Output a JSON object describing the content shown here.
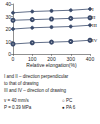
{
  "chart_data": {
    "type": "line",
    "x_label": "Relative elongation(%)",
    "x": [
      0,
      100,
      200,
      300,
      400
    ],
    "xlim": [
      0,
      400
    ],
    "xticks": [
      0,
      100,
      200,
      300,
      400
    ],
    "ylim": [
      0,
      40
    ],
    "yticks": [
      0,
      10,
      20,
      30,
      40
    ],
    "grid": false,
    "color": "#3a4a6b",
    "series": [
      {
        "name": "I",
        "marker": "filled",
        "values": [
          33,
          34,
          34.5,
          35,
          36
        ]
      },
      {
        "name": "II",
        "marker": "open",
        "values": [
          27,
          27.5,
          28,
          28.5,
          29
        ]
      },
      {
        "name": "III",
        "marker": "filled",
        "values": [
          20,
          21,
          21.5,
          22,
          23
        ]
      },
      {
        "name": "IV",
        "marker": "open",
        "values": [
          8,
          9,
          9.5,
          10,
          11
        ]
      }
    ],
    "annotations": [
      "I and II – direction perpendicular",
      "to that of drawing",
      "III and IV – direction of drawing",
      "v = 40 mm/s",
      "P = 0.39 MPa",
      "○ PC",
      "● PA 6"
    ]
  }
}
